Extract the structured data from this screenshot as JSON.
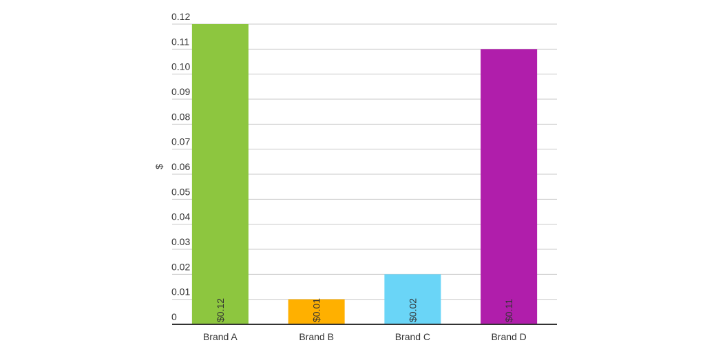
{
  "chart_data": {
    "type": "bar",
    "title": "",
    "xlabel": "",
    "ylabel": "$",
    "categories": [
      "Brand A",
      "Brand B",
      "Brand C",
      "Brand D"
    ],
    "values": [
      0.12,
      0.01,
      0.02,
      0.11
    ],
    "data_labels": [
      "$0.12",
      "$0.01",
      "$0.02",
      "$0.11"
    ],
    "colors": [
      "#8dc63f",
      "#ffb000",
      "#6ad5f7",
      "#b01eab"
    ],
    "ylim": [
      0,
      0.12
    ],
    "yticks": [
      "0",
      "0.01",
      "0.02",
      "0.03",
      "0.04",
      "0.05",
      "0.06",
      "0.07",
      "0.08",
      "0.09",
      "0.10",
      "0.11",
      "0.12"
    ],
    "grid": true,
    "legend": "none"
  }
}
